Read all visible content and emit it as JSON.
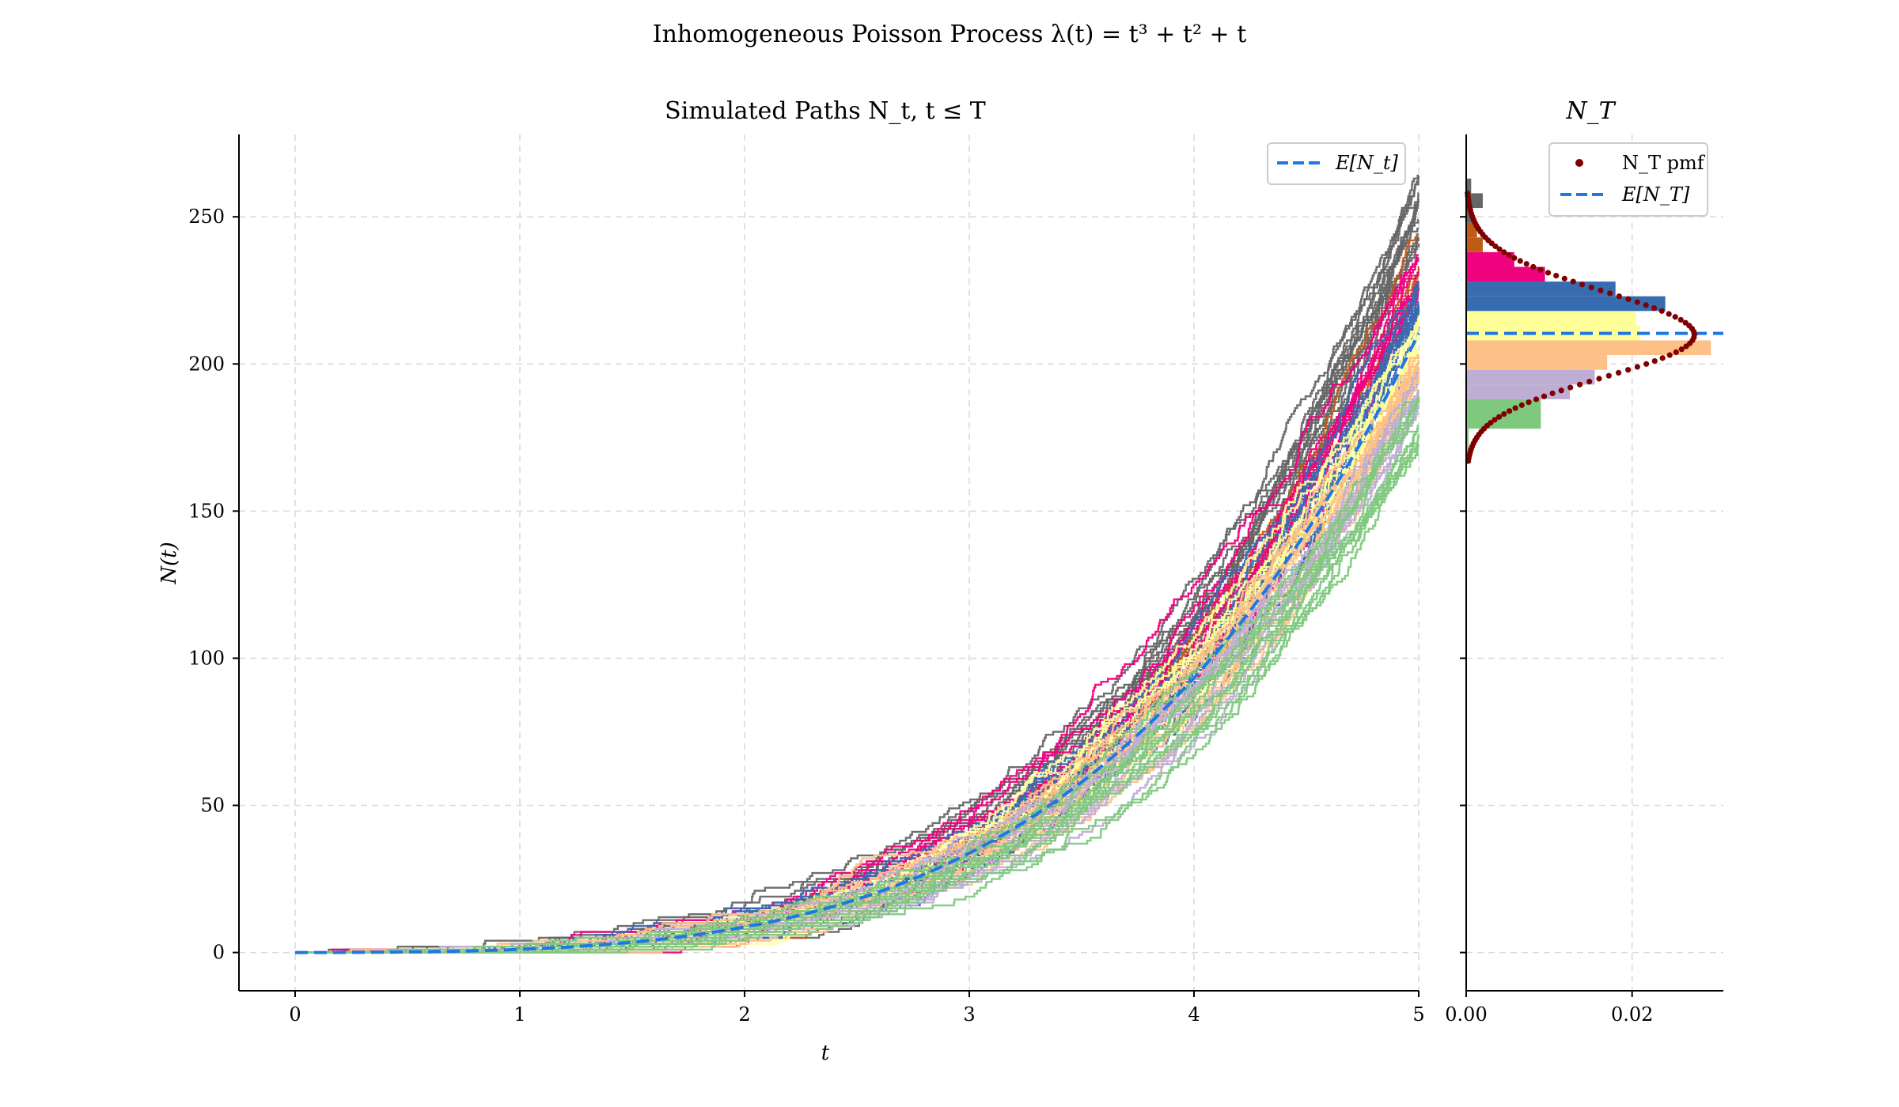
{
  "figure": {
    "suptitle": "Inhomogeneous Poisson Process λ(t) = t³ + t² + t"
  },
  "chart_data": [
    {
      "type": "line",
      "panel": "paths",
      "title": "Simulated Paths N_t, t ≤ T",
      "xlabel": "t",
      "ylabel": "N(t)",
      "xlim": [
        -0.25,
        5.0
      ],
      "ylim": [
        -13,
        278
      ],
      "xticks": [
        0,
        1,
        2,
        3,
        4,
        5
      ],
      "yticks": [
        0,
        50,
        100,
        150,
        200,
        250
      ],
      "grid": true,
      "legend": {
        "placement": "top-right",
        "entries": [
          "E[N_t]"
        ]
      },
      "expected": {
        "name": "E[N_t]",
        "formula": "t^4/4 + t^3/3 + t^2/2",
        "color": "#1f77e4",
        "style": "dashed"
      },
      "path_groups": [
        {
          "color": "#666666",
          "count": 14,
          "final_range": [
            240,
            265
          ]
        },
        {
          "color": "#bf5b17",
          "count": 4,
          "final_range": [
            225,
            245
          ]
        },
        {
          "color": "#f0027f",
          "count": 12,
          "final_range": [
            222,
            238
          ]
        },
        {
          "color": "#386cb0",
          "count": 14,
          "final_range": [
            210,
            228
          ]
        },
        {
          "color": "#ffff99",
          "count": 12,
          "final_range": [
            203,
            217
          ]
        },
        {
          "color": "#fdc086",
          "count": 14,
          "final_range": [
            195,
            208
          ]
        },
        {
          "color": "#beaed4",
          "count": 10,
          "final_range": [
            185,
            198
          ]
        },
        {
          "color": "#7fc97f",
          "count": 12,
          "final_range": [
            170,
            190
          ]
        }
      ]
    },
    {
      "type": "bar",
      "panel": "terminal-distribution",
      "orientation": "horizontal",
      "title": "N_T",
      "xlim": [
        0,
        0.031
      ],
      "ylim": [
        -13,
        278
      ],
      "xticks": [
        0.0,
        0.02
      ],
      "xticklabels": [
        "0.00",
        "0.02"
      ],
      "grid": true,
      "legend": {
        "placement": "top-right",
        "entries": [
          "N_T pmf",
          "E[N_T]"
        ]
      },
      "histogram": [
        {
          "y0": 168,
          "y1": 178,
          "value": 0.0003,
          "color": "#7fc97f"
        },
        {
          "y0": 178,
          "y1": 188,
          "value": 0.009,
          "color": "#7fc97f"
        },
        {
          "y0": 188,
          "y1": 193,
          "value": 0.0125,
          "color": "#beaed4"
        },
        {
          "y0": 193,
          "y1": 198,
          "value": 0.0155,
          "color": "#beaed4"
        },
        {
          "y0": 198,
          "y1": 203,
          "value": 0.017,
          "color": "#fdc086"
        },
        {
          "y0": 203,
          "y1": 208,
          "value": 0.0295,
          "color": "#fdc086"
        },
        {
          "y0": 208,
          "y1": 213,
          "value": 0.021,
          "color": "#ffff99"
        },
        {
          "y0": 213,
          "y1": 218,
          "value": 0.0205,
          "color": "#ffff99"
        },
        {
          "y0": 218,
          "y1": 223,
          "value": 0.024,
          "color": "#386cb0"
        },
        {
          "y0": 223,
          "y1": 228,
          "value": 0.018,
          "color": "#386cb0"
        },
        {
          "y0": 228,
          "y1": 233,
          "value": 0.0095,
          "color": "#f0027f"
        },
        {
          "y0": 233,
          "y1": 238,
          "value": 0.0058,
          "color": "#f0027f"
        },
        {
          "y0": 238,
          "y1": 243,
          "value": 0.002,
          "color": "#bf5b17"
        },
        {
          "y0": 243,
          "y1": 248,
          "value": 0.0013,
          "color": "#bf5b17"
        },
        {
          "y0": 248,
          "y1": 253,
          "value": 0.0008,
          "color": "#666666"
        },
        {
          "y0": 253,
          "y1": 258,
          "value": 0.002,
          "color": "#666666"
        },
        {
          "y0": 258,
          "y1": 263,
          "value": 0.0006,
          "color": "#666666"
        }
      ],
      "pmf": {
        "name": "N_T pmf",
        "mean": 210.4,
        "range": [
          167,
          258
        ],
        "color": "#7f0000"
      },
      "expected": {
        "name": "E[N_T]",
        "value": 210.4,
        "color": "#1f77e4",
        "style": "dashed"
      }
    }
  ]
}
